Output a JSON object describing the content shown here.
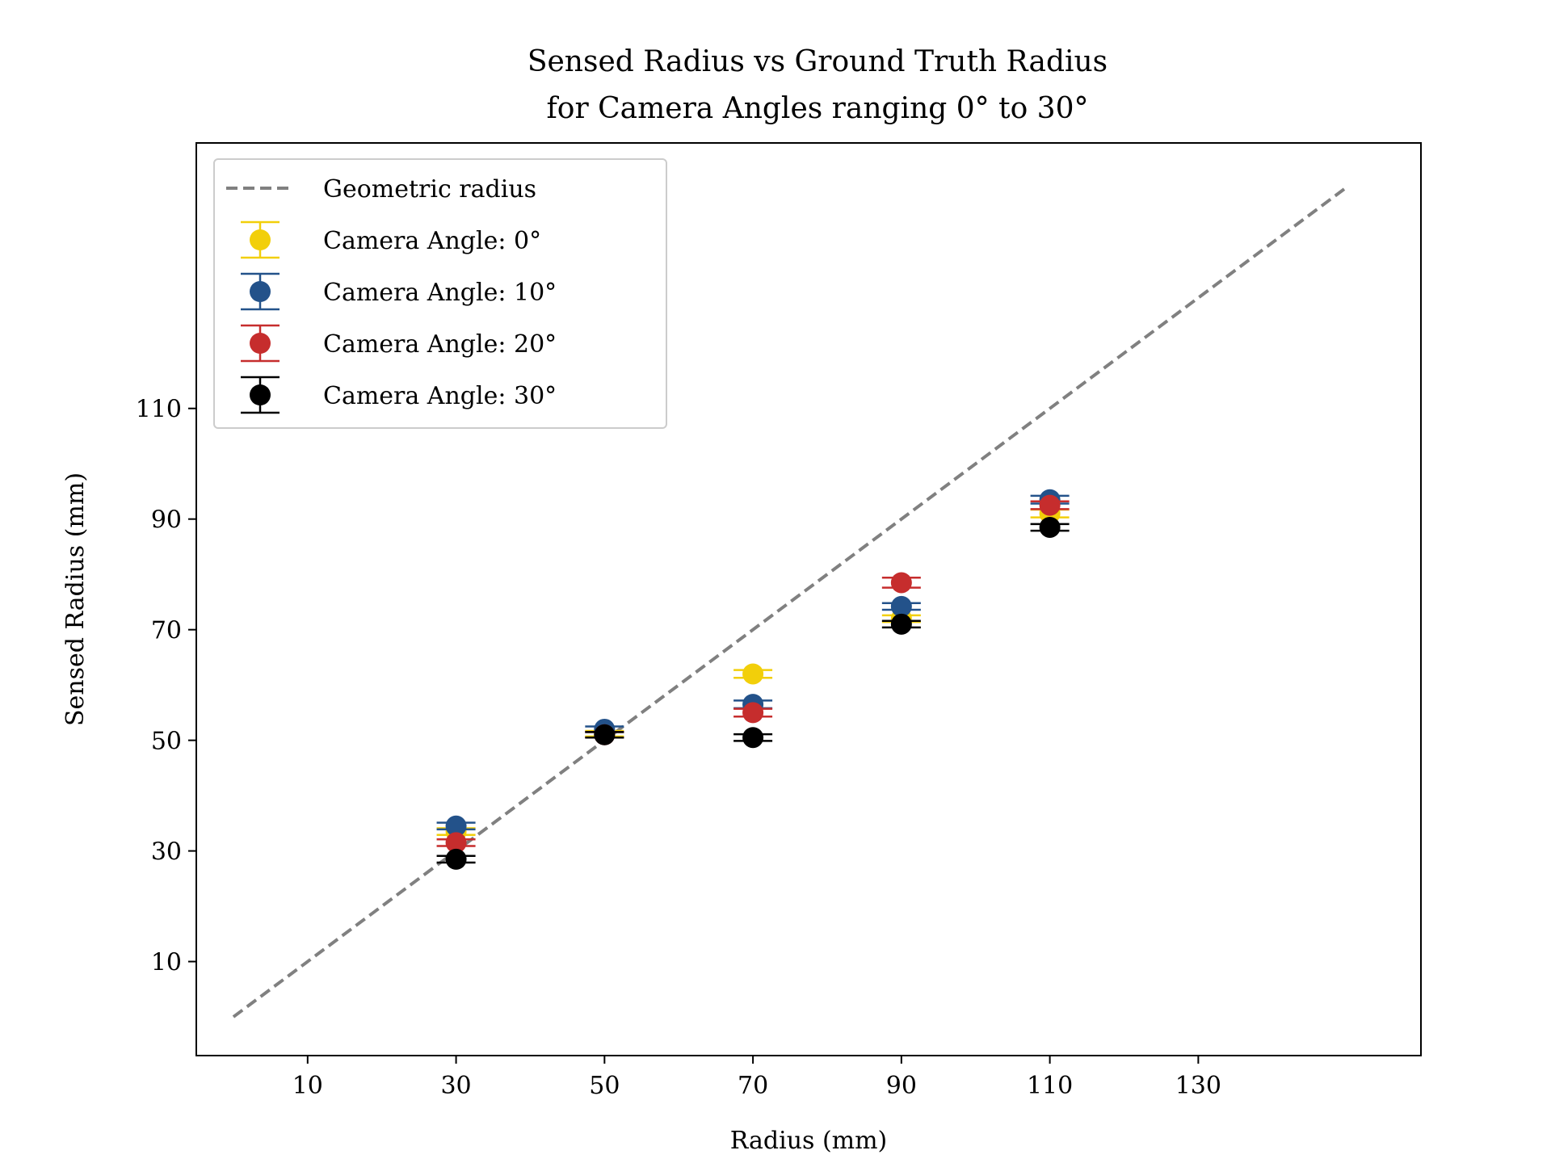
{
  "chart_data": {
    "type": "scatter",
    "title_line1": "Sensed Radius vs Ground Truth Radius",
    "title_line2": "for Camera Angles ranging 0° to 30°",
    "xlabel": "Radius (mm)",
    "ylabel": "Sensed Radius (mm)",
    "xlim": [
      -5,
      160
    ],
    "ylim": [
      -7,
      158
    ],
    "xticks": [
      10,
      30,
      50,
      70,
      90,
      110,
      130
    ],
    "yticks": [
      10,
      30,
      50,
      70,
      90,
      110
    ],
    "xtick_labels": [
      "10",
      "30",
      "50",
      "70",
      "90",
      "110",
      "130"
    ],
    "ytick_labels": [
      "10",
      "30",
      "50",
      "70",
      "90",
      "110"
    ],
    "grid": false,
    "legend_position": "upper-left",
    "reference_line": {
      "name": "Geometric radius",
      "x": [
        0,
        150
      ],
      "y": [
        0,
        150
      ],
      "color": "#808080",
      "style": "dashed"
    },
    "series": [
      {
        "name": "Camera Angle: 0°",
        "color": "#f2cf0a",
        "x": [
          30,
          50,
          70,
          90,
          110
        ],
        "y": [
          33.5,
          51.2,
          62.0,
          72.0,
          91.0
        ],
        "yerr": [
          0.6,
          0.5,
          0.7,
          0.6,
          0.7
        ]
      },
      {
        "name": "Camera Angle: 10°",
        "color": "#23528a",
        "x": [
          30,
          50,
          70,
          90,
          110
        ],
        "y": [
          34.5,
          52.0,
          56.5,
          74.2,
          93.5
        ],
        "yerr": [
          0.6,
          0.5,
          0.7,
          0.6,
          0.7
        ]
      },
      {
        "name": "Camera Angle: 20°",
        "color": "#c62d2d",
        "x": [
          30,
          50,
          70,
          90,
          110
        ],
        "y": [
          31.5,
          51.0,
          55.0,
          78.5,
          92.5
        ],
        "yerr": [
          0.6,
          0.5,
          0.7,
          0.9,
          0.7
        ]
      },
      {
        "name": "Camera Angle: 30°",
        "color": "#000000",
        "x": [
          30,
          50,
          70,
          90,
          110
        ],
        "y": [
          28.5,
          51.0,
          50.5,
          71.0,
          88.5
        ],
        "yerr": [
          0.6,
          0.5,
          0.6,
          0.6,
          0.6
        ]
      }
    ]
  }
}
